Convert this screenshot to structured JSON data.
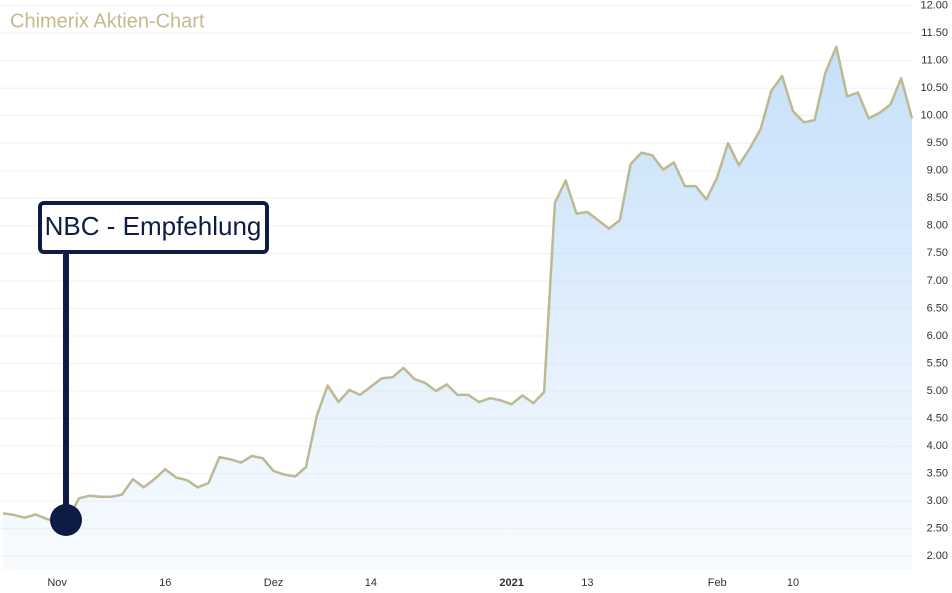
{
  "chart_data": {
    "type": "area",
    "title": "Chimerix Aktien-Chart",
    "annotation": "NBC - Empfehlung",
    "color": "#bdb993",
    "fill_color": "#cfe5fb",
    "grid": true,
    "categories": [
      null,
      null,
      null,
      null,
      null,
      "Nov",
      null,
      null,
      null,
      null,
      null,
      null,
      null,
      null,
      null,
      "16",
      null,
      null,
      null,
      null,
      null,
      null,
      null,
      null,
      null,
      "Dez",
      null,
      null,
      null,
      null,
      null,
      null,
      null,
      null,
      "14",
      null,
      null,
      null,
      null,
      null,
      null,
      null,
      null,
      null,
      null,
      null,
      null,
      "2021",
      null,
      null,
      null,
      null,
      null,
      null,
      "13",
      null,
      null,
      null,
      null,
      null,
      null,
      null,
      null,
      null,
      null,
      null,
      "Feb",
      null,
      null,
      null,
      null,
      null,
      null,
      "10",
      null,
      null,
      null,
      null,
      null,
      null,
      null,
      null,
      null,
      null,
      null
    ],
    "values": [
      2.78,
      2.75,
      2.7,
      2.76,
      2.68,
      2.62,
      2.65,
      3.05,
      3.1,
      3.08,
      3.08,
      3.12,
      3.4,
      3.25,
      3.4,
      3.58,
      3.43,
      3.38,
      3.25,
      3.33,
      3.8,
      3.76,
      3.7,
      3.82,
      3.78,
      3.55,
      3.48,
      3.45,
      3.62,
      4.55,
      5.1,
      4.8,
      5.02,
      4.93,
      5.08,
      5.23,
      5.25,
      5.42,
      5.22,
      5.15,
      5.0,
      5.12,
      4.93,
      4.93,
      4.8,
      4.87,
      4.83,
      4.76,
      4.92,
      4.78,
      4.98,
      8.42,
      8.82,
      8.22,
      8.25,
      8.1,
      7.95,
      8.1,
      9.12,
      9.33,
      9.28,
      9.02,
      9.15,
      8.72,
      8.72,
      8.48,
      8.88,
      9.5,
      9.1,
      9.4,
      9.75,
      10.45,
      10.72,
      10.08,
      9.88,
      9.92,
      10.78,
      11.25,
      10.35,
      10.42,
      9.95,
      10.05,
      10.2,
      10.68,
      9.95
    ],
    "ylim": [
      1.75,
      12.1
    ],
    "yticks": [
      {
        "value": 2,
        "label": "2.00"
      },
      {
        "value": 2.5,
        "label": "2.50"
      },
      {
        "value": 3,
        "label": "3.00"
      },
      {
        "value": 3.5,
        "label": "3.50"
      },
      {
        "value": 4,
        "label": "4.00"
      },
      {
        "value": 4.5,
        "label": "4.50"
      },
      {
        "value": 5,
        "label": "5.00"
      },
      {
        "value": 5.5,
        "label": "5.50"
      },
      {
        "value": 6,
        "label": "6.00"
      },
      {
        "value": 6.5,
        "label": "6.50"
      },
      {
        "value": 7,
        "label": "7.00"
      },
      {
        "value": 7.5,
        "label": "7.50"
      },
      {
        "value": 8,
        "label": "8.00"
      },
      {
        "value": 8.5,
        "label": "8.50"
      },
      {
        "value": 9,
        "label": "9.00"
      },
      {
        "value": 9.5,
        "label": "9.50"
      },
      {
        "value": 10,
        "label": "10.00"
      },
      {
        "value": 10.5,
        "label": "10.50"
      },
      {
        "value": 11,
        "label": "11.00"
      },
      {
        "value": 11.5,
        "label": "11.50"
      },
      {
        "value": 12,
        "label": "12.00"
      }
    ]
  }
}
